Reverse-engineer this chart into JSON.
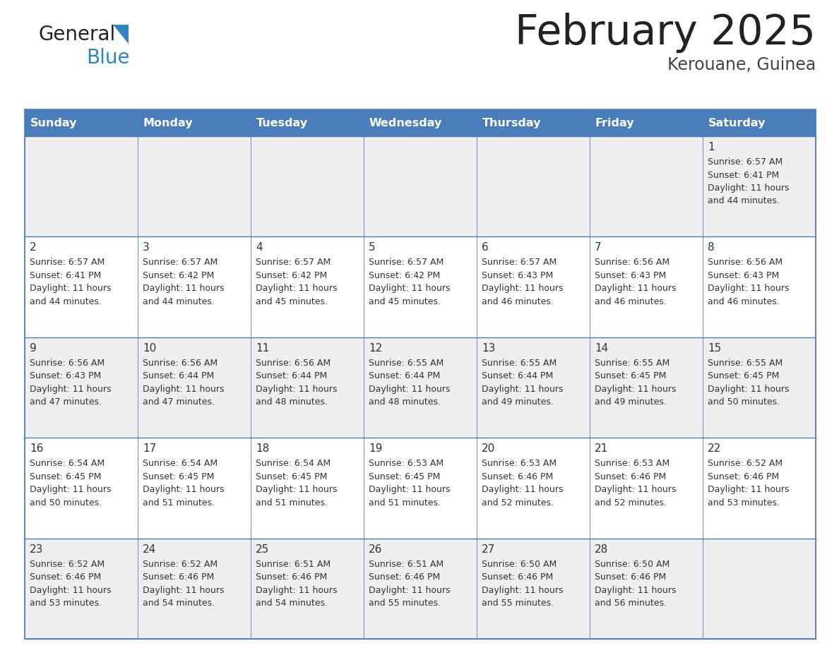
{
  "title": "February 2025",
  "subtitle": "Kerouane, Guinea",
  "days_of_week": [
    "Sunday",
    "Monday",
    "Tuesday",
    "Wednesday",
    "Thursday",
    "Friday",
    "Saturday"
  ],
  "header_bg": "#4A7EBB",
  "header_text": "#FFFFFF",
  "cell_bg_odd": "#EFEFEF",
  "cell_bg_even": "#FFFFFF",
  "day_number_color": "#333333",
  "text_color": "#333333",
  "border_color": "#4A7EBB",
  "logo_general_color": "#222222",
  "logo_blue_color": "#2E86C1",
  "logo_triangle_color": "#2E86C1",
  "title_color": "#222222",
  "subtitle_color": "#444444",
  "calendar_data": [
    [
      null,
      null,
      null,
      null,
      null,
      null,
      {
        "day": "1",
        "sunrise": "Sunrise: 6:57 AM",
        "sunset": "Sunset: 6:41 PM",
        "daylight": "Daylight: 11 hours",
        "daylight2": "and 44 minutes."
      }
    ],
    [
      {
        "day": "2",
        "sunrise": "Sunrise: 6:57 AM",
        "sunset": "Sunset: 6:41 PM",
        "daylight": "Daylight: 11 hours",
        "daylight2": "and 44 minutes."
      },
      {
        "day": "3",
        "sunrise": "Sunrise: 6:57 AM",
        "sunset": "Sunset: 6:42 PM",
        "daylight": "Daylight: 11 hours",
        "daylight2": "and 44 minutes."
      },
      {
        "day": "4",
        "sunrise": "Sunrise: 6:57 AM",
        "sunset": "Sunset: 6:42 PM",
        "daylight": "Daylight: 11 hours",
        "daylight2": "and 45 minutes."
      },
      {
        "day": "5",
        "sunrise": "Sunrise: 6:57 AM",
        "sunset": "Sunset: 6:42 PM",
        "daylight": "Daylight: 11 hours",
        "daylight2": "and 45 minutes."
      },
      {
        "day": "6",
        "sunrise": "Sunrise: 6:57 AM",
        "sunset": "Sunset: 6:43 PM",
        "daylight": "Daylight: 11 hours",
        "daylight2": "and 46 minutes."
      },
      {
        "day": "7",
        "sunrise": "Sunrise: 6:56 AM",
        "sunset": "Sunset: 6:43 PM",
        "daylight": "Daylight: 11 hours",
        "daylight2": "and 46 minutes."
      },
      {
        "day": "8",
        "sunrise": "Sunrise: 6:56 AM",
        "sunset": "Sunset: 6:43 PM",
        "daylight": "Daylight: 11 hours",
        "daylight2": "and 46 minutes."
      }
    ],
    [
      {
        "day": "9",
        "sunrise": "Sunrise: 6:56 AM",
        "sunset": "Sunset: 6:43 PM",
        "daylight": "Daylight: 11 hours",
        "daylight2": "and 47 minutes."
      },
      {
        "day": "10",
        "sunrise": "Sunrise: 6:56 AM",
        "sunset": "Sunset: 6:44 PM",
        "daylight": "Daylight: 11 hours",
        "daylight2": "and 47 minutes."
      },
      {
        "day": "11",
        "sunrise": "Sunrise: 6:56 AM",
        "sunset": "Sunset: 6:44 PM",
        "daylight": "Daylight: 11 hours",
        "daylight2": "and 48 minutes."
      },
      {
        "day": "12",
        "sunrise": "Sunrise: 6:55 AM",
        "sunset": "Sunset: 6:44 PM",
        "daylight": "Daylight: 11 hours",
        "daylight2": "and 48 minutes."
      },
      {
        "day": "13",
        "sunrise": "Sunrise: 6:55 AM",
        "sunset": "Sunset: 6:44 PM",
        "daylight": "Daylight: 11 hours",
        "daylight2": "and 49 minutes."
      },
      {
        "day": "14",
        "sunrise": "Sunrise: 6:55 AM",
        "sunset": "Sunset: 6:45 PM",
        "daylight": "Daylight: 11 hours",
        "daylight2": "and 49 minutes."
      },
      {
        "day": "15",
        "sunrise": "Sunrise: 6:55 AM",
        "sunset": "Sunset: 6:45 PM",
        "daylight": "Daylight: 11 hours",
        "daylight2": "and 50 minutes."
      }
    ],
    [
      {
        "day": "16",
        "sunrise": "Sunrise: 6:54 AM",
        "sunset": "Sunset: 6:45 PM",
        "daylight": "Daylight: 11 hours",
        "daylight2": "and 50 minutes."
      },
      {
        "day": "17",
        "sunrise": "Sunrise: 6:54 AM",
        "sunset": "Sunset: 6:45 PM",
        "daylight": "Daylight: 11 hours",
        "daylight2": "and 51 minutes."
      },
      {
        "day": "18",
        "sunrise": "Sunrise: 6:54 AM",
        "sunset": "Sunset: 6:45 PM",
        "daylight": "Daylight: 11 hours",
        "daylight2": "and 51 minutes."
      },
      {
        "day": "19",
        "sunrise": "Sunrise: 6:53 AM",
        "sunset": "Sunset: 6:45 PM",
        "daylight": "Daylight: 11 hours",
        "daylight2": "and 51 minutes."
      },
      {
        "day": "20",
        "sunrise": "Sunrise: 6:53 AM",
        "sunset": "Sunset: 6:46 PM",
        "daylight": "Daylight: 11 hours",
        "daylight2": "and 52 minutes."
      },
      {
        "day": "21",
        "sunrise": "Sunrise: 6:53 AM",
        "sunset": "Sunset: 6:46 PM",
        "daylight": "Daylight: 11 hours",
        "daylight2": "and 52 minutes."
      },
      {
        "day": "22",
        "sunrise": "Sunrise: 6:52 AM",
        "sunset": "Sunset: 6:46 PM",
        "daylight": "Daylight: 11 hours",
        "daylight2": "and 53 minutes."
      }
    ],
    [
      {
        "day": "23",
        "sunrise": "Sunrise: 6:52 AM",
        "sunset": "Sunset: 6:46 PM",
        "daylight": "Daylight: 11 hours",
        "daylight2": "and 53 minutes."
      },
      {
        "day": "24",
        "sunrise": "Sunrise: 6:52 AM",
        "sunset": "Sunset: 6:46 PM",
        "daylight": "Daylight: 11 hours",
        "daylight2": "and 54 minutes."
      },
      {
        "day": "25",
        "sunrise": "Sunrise: 6:51 AM",
        "sunset": "Sunset: 6:46 PM",
        "daylight": "Daylight: 11 hours",
        "daylight2": "and 54 minutes."
      },
      {
        "day": "26",
        "sunrise": "Sunrise: 6:51 AM",
        "sunset": "Sunset: 6:46 PM",
        "daylight": "Daylight: 11 hours",
        "daylight2": "and 55 minutes."
      },
      {
        "day": "27",
        "sunrise": "Sunrise: 6:50 AM",
        "sunset": "Sunset: 6:46 PM",
        "daylight": "Daylight: 11 hours",
        "daylight2": "and 55 minutes."
      },
      {
        "day": "28",
        "sunrise": "Sunrise: 6:50 AM",
        "sunset": "Sunset: 6:46 PM",
        "daylight": "Daylight: 11 hours",
        "daylight2": "and 56 minutes."
      },
      null
    ]
  ]
}
